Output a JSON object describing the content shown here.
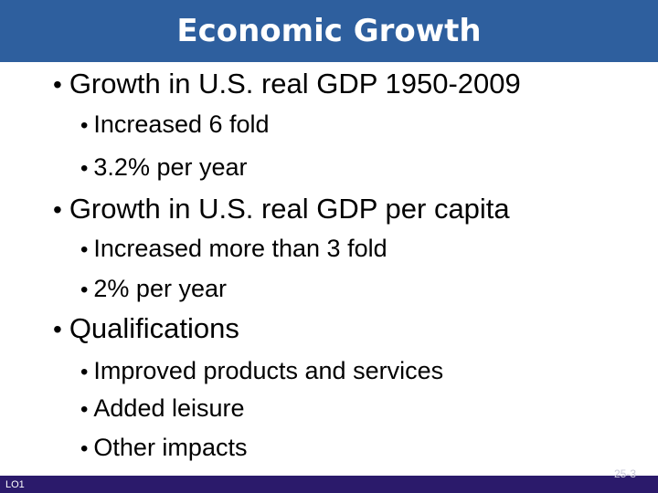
{
  "title": "Economic Growth",
  "bullets": [
    {
      "text": "Growth in U.S. real GDP 1950-2009",
      "subitems": [
        "Increased 6 fold",
        "3.2% per year"
      ]
    },
    {
      "text": "Growth in U.S. real GDP per capita",
      "subitems": [
        "Increased more than 3 fold",
        "2% per year"
      ]
    },
    {
      "text": "Qualifications",
      "subitems": [
        "Improved products and services",
        "Added leisure",
        "Other impacts"
      ]
    }
  ],
  "footer": {
    "left": "LO1",
    "right": "25-3"
  },
  "colors": {
    "title_bar": "#2e5f9e",
    "footer_bar": "#2b1a6b"
  }
}
